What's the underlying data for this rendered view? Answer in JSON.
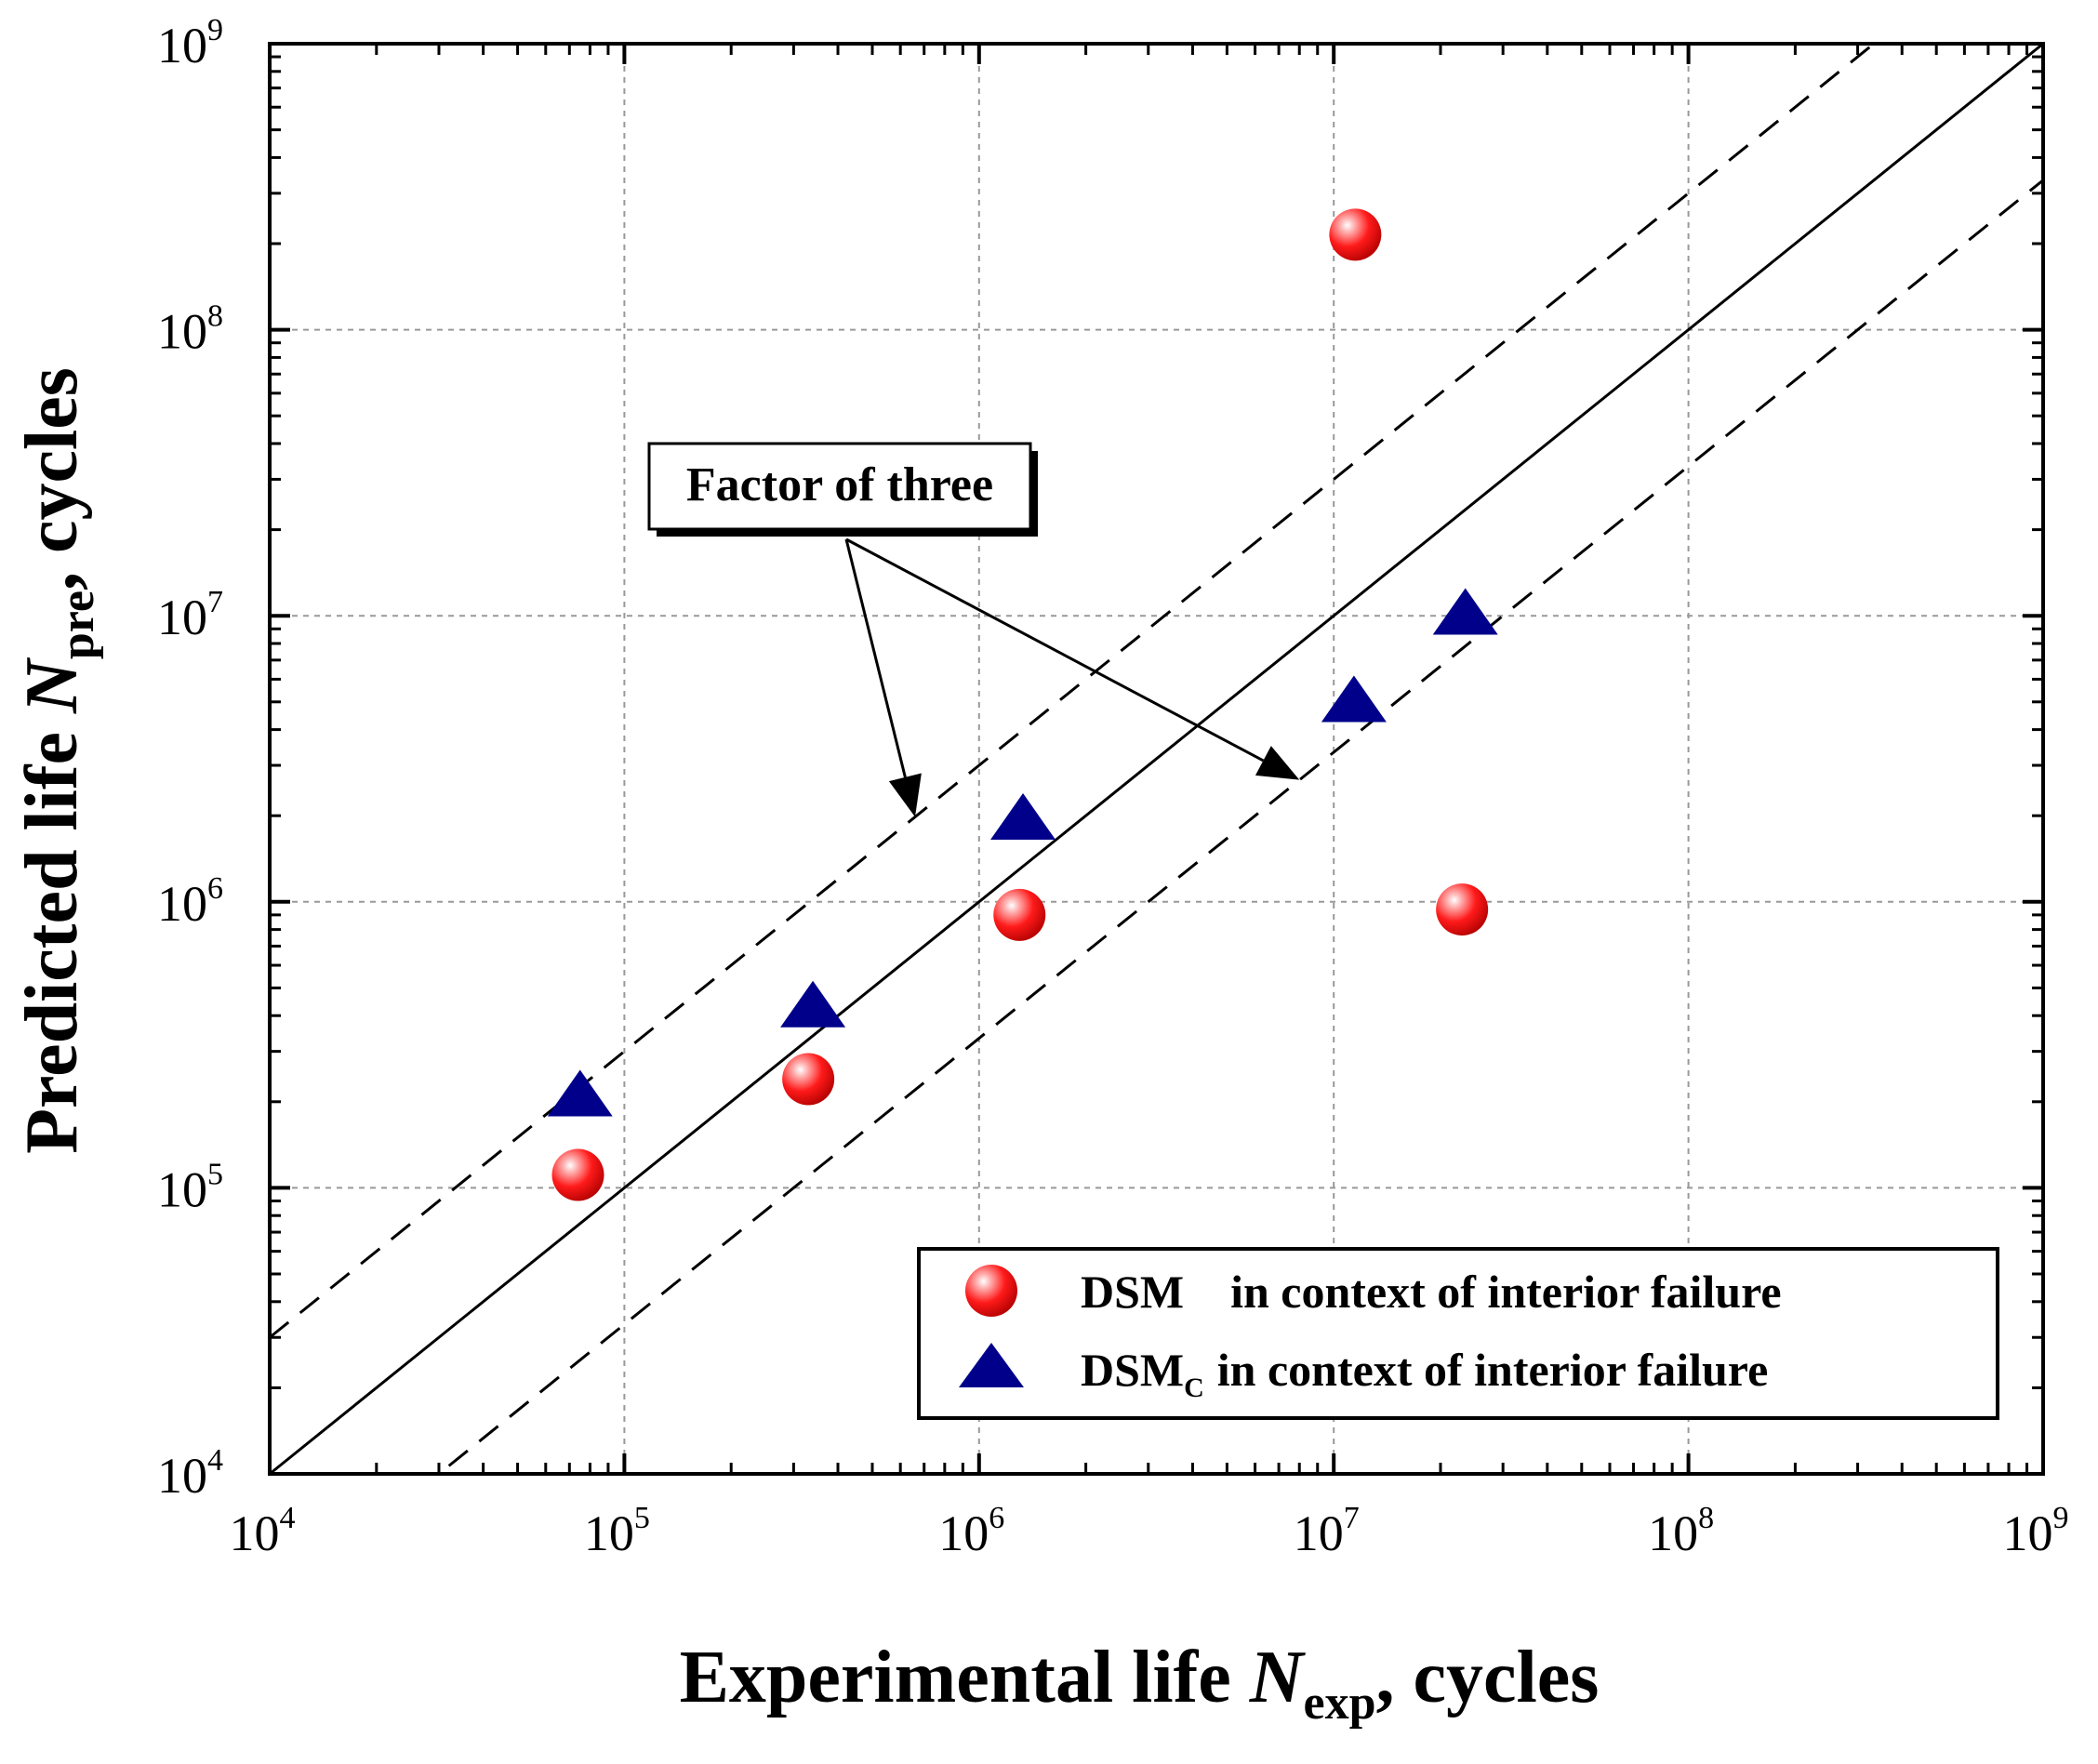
{
  "chart_data": {
    "type": "scatter",
    "xscale": "log",
    "yscale": "log",
    "xlim": [
      10000,
      1000000000
    ],
    "ylim": [
      10000,
      1000000000
    ],
    "grid": true,
    "xlabel": {
      "main": "Experimental life ",
      "italic": "N",
      "sub": "exp",
      "tail": ", cycles"
    },
    "ylabel": {
      "main": "Predicted life ",
      "italic": "N",
      "sub": "pre",
      "tail": ", cycles"
    },
    "tick_base": "10",
    "tick_exponents": [
      "4",
      "5",
      "6",
      "7",
      "8",
      "9"
    ],
    "series": [
      {
        "name": "DSM",
        "legend_label": {
          "main": "DSM",
          "sub": "",
          "tail": "in context of interior failure"
        },
        "marker": "sphere",
        "color": "#ff1a1a",
        "x": [
          74000,
          330000,
          1300000,
          11500000,
          23000000
        ],
        "y": [
          111000,
          240000,
          900000,
          215000000,
          940000
        ]
      },
      {
        "name": "DSMC",
        "legend_label": {
          "main": "DSM",
          "sub": "C",
          "tail": "in context of interior failure"
        },
        "marker": "triangle",
        "color": "#00008b",
        "x": [
          75000,
          340000,
          1330000,
          11400000,
          23500000
        ],
        "y": [
          205000,
          420000,
          1900000,
          4900000,
          9900000
        ]
      }
    ],
    "reference_lines": [
      {
        "name": "1:1 line",
        "factor": 1,
        "style": "solid"
      },
      {
        "name": "upper factor-of-three bound",
        "factor": 3,
        "style": "dashed"
      },
      {
        "name": "lower factor-of-three bound",
        "factor": 0.3333,
        "style": "dashed"
      }
    ],
    "annotation": {
      "text": "Factor of three",
      "arrow_targets": [
        [
          660000,
          1980000
        ],
        [
          8000000,
          2670000
        ]
      ]
    },
    "legend_position": "bottom-right"
  }
}
